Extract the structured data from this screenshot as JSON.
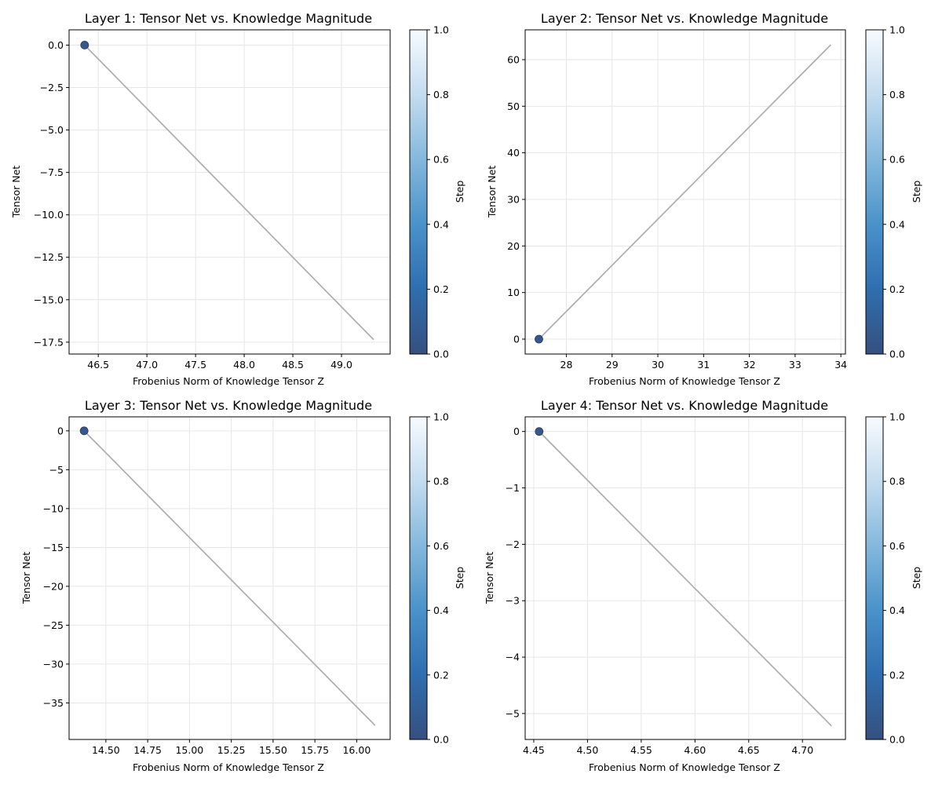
{
  "chart_data": [
    {
      "type": "scatter",
      "title": "Layer 1: Tensor Net vs. Knowledge Magnitude",
      "xlabel": "Frobenius Norm of Knowledge Tensor Z",
      "ylabel": "Tensor Net",
      "colorbar_label": "Step",
      "xlim": [
        46.2,
        49.5
      ],
      "ylim": [
        -18.2,
        0.9
      ],
      "xticks": [
        "46.5",
        "47.0",
        "47.5",
        "48.0",
        "48.5",
        "49.0"
      ],
      "xtick_values": [
        46.5,
        47.0,
        47.5,
        48.0,
        48.5,
        49.0
      ],
      "yticks": [
        "0.0",
        "−2.5",
        "−5.0",
        "−7.5",
        "−10.0",
        "−12.5",
        "−15.0",
        "−17.5"
      ],
      "ytick_values": [
        0.0,
        -2.5,
        -5.0,
        -7.5,
        -10.0,
        -12.5,
        -15.0,
        -17.5
      ],
      "colorbar_ticks": [
        "0.0",
        "0.2",
        "0.4",
        "0.6",
        "0.8",
        "1.0"
      ],
      "trajectory": {
        "x": [
          46.36,
          49.33
        ],
        "y": [
          0.0,
          -17.35
        ]
      },
      "points": {
        "x": [
          46.36
        ],
        "y": [
          0.0
        ],
        "step": [
          0
        ]
      },
      "grid": true
    },
    {
      "type": "scatter",
      "title": "Layer 2: Tensor Net vs. Knowledge Magnitude",
      "xlabel": "Frobenius Norm of Knowledge Tensor Z",
      "ylabel": "Tensor Net",
      "colorbar_label": "Step",
      "xlim": [
        27.1,
        34.1
      ],
      "ylim": [
        -3.2,
        66.4
      ],
      "xticks": [
        "28",
        "29",
        "30",
        "31",
        "32",
        "33",
        "34"
      ],
      "xtick_values": [
        28,
        29,
        30,
        31,
        32,
        33,
        34
      ],
      "yticks": [
        "0",
        "10",
        "20",
        "30",
        "40",
        "50",
        "60"
      ],
      "ytick_values": [
        0,
        10,
        20,
        30,
        40,
        50,
        60
      ],
      "colorbar_ticks": [
        "0.0",
        "0.2",
        "0.4",
        "0.6",
        "0.8",
        "1.0"
      ],
      "trajectory": {
        "x": [
          27.4,
          33.78
        ],
        "y": [
          0.0,
          63.2
        ]
      },
      "points": {
        "x": [
          27.4
        ],
        "y": [
          0.0
        ],
        "step": [
          0
        ]
      },
      "grid": true
    },
    {
      "type": "scatter",
      "title": "Layer 3: Tensor Net vs. Knowledge Magnitude",
      "xlabel": "Frobenius Norm of Knowledge Tensor Z",
      "ylabel": "Tensor Net",
      "colorbar_label": "Step",
      "xlim": [
        14.28,
        16.2
      ],
      "ylim": [
        -39.7,
        1.8
      ],
      "xticks": [
        "14.50",
        "14.75",
        "15.00",
        "15.25",
        "15.50",
        "15.75",
        "16.00"
      ],
      "xtick_values": [
        14.5,
        14.75,
        15.0,
        15.25,
        15.5,
        15.75,
        16.0
      ],
      "yticks": [
        "0",
        "−5",
        "−10",
        "−15",
        "−20",
        "−25",
        "−30",
        "−35"
      ],
      "ytick_values": [
        0,
        -5,
        -10,
        -15,
        -20,
        -25,
        -30,
        -35
      ],
      "colorbar_ticks": [
        "0.0",
        "0.2",
        "0.4",
        "0.6",
        "0.8",
        "1.0"
      ],
      "trajectory": {
        "x": [
          14.37,
          16.11
        ],
        "y": [
          0.0,
          -37.9
        ]
      },
      "points": {
        "x": [
          14.37
        ],
        "y": [
          0.0
        ],
        "step": [
          0
        ]
      },
      "grid": true
    },
    {
      "type": "scatter",
      "title": "Layer 4: Tensor Net vs. Knowledge Magnitude",
      "xlabel": "Frobenius Norm of Knowledge Tensor Z",
      "ylabel": "Tensor Net",
      "colorbar_label": "Step",
      "xlim": [
        4.442,
        4.74
      ],
      "ylim": [
        -5.46,
        0.26
      ],
      "xticks": [
        "4.45",
        "4.50",
        "4.55",
        "4.60",
        "4.65",
        "4.70"
      ],
      "xtick_values": [
        4.45,
        4.5,
        4.55,
        4.6,
        4.65,
        4.7
      ],
      "yticks": [
        "0",
        "−1",
        "−2",
        "−3",
        "−4",
        "−5"
      ],
      "ytick_values": [
        0,
        -1,
        -2,
        -3,
        -4,
        -5
      ],
      "colorbar_ticks": [
        "0.0",
        "0.2",
        "0.4",
        "0.6",
        "0.8",
        "1.0"
      ],
      "trajectory": {
        "x": [
          4.455,
          4.727
        ],
        "y": [
          0.0,
          -5.22
        ]
      },
      "points": {
        "x": [
          4.455
        ],
        "y": [
          0.0
        ],
        "step": [
          0
        ]
      },
      "grid": true
    }
  ],
  "colors": {
    "trajectory": "#b0b0b0",
    "grid": "#e6e6e6",
    "point": "#2b4f86",
    "colormap": [
      "#35507f",
      "#2f6eae",
      "#4a92c9",
      "#84b8dc",
      "#c4dcef",
      "#f7fbff"
    ]
  }
}
